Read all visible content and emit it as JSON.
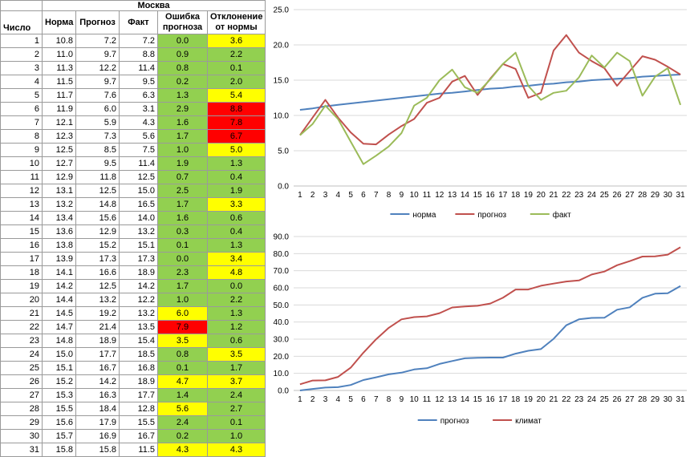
{
  "table": {
    "city": "Москва",
    "headers": [
      "Число",
      "Норма",
      "Прогноз",
      "Факт",
      "Ошибка прогноза",
      "Отклонение от нормы"
    ],
    "rows": [
      {
        "day": "1",
        "norm": "10.8",
        "fc": "7.2",
        "fact": "7.2",
        "err": "0.0",
        "dev": "3.6",
        "err_color": "green",
        "dev_color": "yellow"
      },
      {
        "day": "2",
        "norm": "11.0",
        "fc": "9.7",
        "fact": "8.8",
        "err": "0.9",
        "dev": "2.2",
        "err_color": "green",
        "dev_color": "green"
      },
      {
        "day": "3",
        "norm": "11.3",
        "fc": "12.2",
        "fact": "11.4",
        "err": "0.8",
        "dev": "0.1",
        "err_color": "green",
        "dev_color": "green"
      },
      {
        "day": "4",
        "norm": "11.5",
        "fc": "9.7",
        "fact": "9.5",
        "err": "0.2",
        "dev": "2.0",
        "err_color": "green",
        "dev_color": "green"
      },
      {
        "day": "5",
        "norm": "11.7",
        "fc": "7.6",
        "fact": "6.3",
        "err": "1.3",
        "dev": "5.4",
        "err_color": "green",
        "dev_color": "yellow"
      },
      {
        "day": "6",
        "norm": "11.9",
        "fc": "6.0",
        "fact": "3.1",
        "err": "2.9",
        "dev": "8.8",
        "err_color": "green",
        "dev_color": "red"
      },
      {
        "day": "7",
        "norm": "12.1",
        "fc": "5.9",
        "fact": "4.3",
        "err": "1.6",
        "dev": "7.8",
        "err_color": "green",
        "dev_color": "red"
      },
      {
        "day": "8",
        "norm": "12.3",
        "fc": "7.3",
        "fact": "5.6",
        "err": "1.7",
        "dev": "6.7",
        "err_color": "green",
        "dev_color": "red"
      },
      {
        "day": "9",
        "norm": "12.5",
        "fc": "8.5",
        "fact": "7.5",
        "err": "1.0",
        "dev": "5.0",
        "err_color": "green",
        "dev_color": "yellow"
      },
      {
        "day": "10",
        "norm": "12.7",
        "fc": "9.5",
        "fact": "11.4",
        "err": "1.9",
        "dev": "1.3",
        "err_color": "green",
        "dev_color": "green"
      },
      {
        "day": "11",
        "norm": "12.9",
        "fc": "11.8",
        "fact": "12.5",
        "err": "0.7",
        "dev": "0.4",
        "err_color": "green",
        "dev_color": "green"
      },
      {
        "day": "12",
        "norm": "13.1",
        "fc": "12.5",
        "fact": "15.0",
        "err": "2.5",
        "dev": "1.9",
        "err_color": "green",
        "dev_color": "green"
      },
      {
        "day": "13",
        "norm": "13.2",
        "fc": "14.8",
        "fact": "16.5",
        "err": "1.7",
        "dev": "3.3",
        "err_color": "green",
        "dev_color": "yellow"
      },
      {
        "day": "14",
        "norm": "13.4",
        "fc": "15.6",
        "fact": "14.0",
        "err": "1.6",
        "dev": "0.6",
        "err_color": "green",
        "dev_color": "green"
      },
      {
        "day": "15",
        "norm": "13.6",
        "fc": "12.9",
        "fact": "13.2",
        "err": "0.3",
        "dev": "0.4",
        "err_color": "green",
        "dev_color": "green"
      },
      {
        "day": "16",
        "norm": "13.8",
        "fc": "15.2",
        "fact": "15.1",
        "err": "0.1",
        "dev": "1.3",
        "err_color": "green",
        "dev_color": "green"
      },
      {
        "day": "17",
        "norm": "13.9",
        "fc": "17.3",
        "fact": "17.3",
        "err": "0.0",
        "dev": "3.4",
        "err_color": "green",
        "dev_color": "yellow"
      },
      {
        "day": "18",
        "norm": "14.1",
        "fc": "16.6",
        "fact": "18.9",
        "err": "2.3",
        "dev": "4.8",
        "err_color": "green",
        "dev_color": "yellow"
      },
      {
        "day": "19",
        "norm": "14.2",
        "fc": "12.5",
        "fact": "14.2",
        "err": "1.7",
        "dev": "0.0",
        "err_color": "green",
        "dev_color": "green"
      },
      {
        "day": "20",
        "norm": "14.4",
        "fc": "13.2",
        "fact": "12.2",
        "err": "1.0",
        "dev": "2.2",
        "err_color": "green",
        "dev_color": "green"
      },
      {
        "day": "21",
        "norm": "14.5",
        "fc": "19.2",
        "fact": "13.2",
        "err": "6.0",
        "dev": "1.3",
        "err_color": "yellow",
        "dev_color": "green"
      },
      {
        "day": "22",
        "norm": "14.7",
        "fc": "21.4",
        "fact": "13.5",
        "err": "7.9",
        "dev": "1.2",
        "err_color": "red",
        "dev_color": "green"
      },
      {
        "day": "23",
        "norm": "14.8",
        "fc": "18.9",
        "fact": "15.4",
        "err": "3.5",
        "dev": "0.6",
        "err_color": "yellow",
        "dev_color": "green"
      },
      {
        "day": "24",
        "norm": "15.0",
        "fc": "17.7",
        "fact": "18.5",
        "err": "0.8",
        "dev": "3.5",
        "err_color": "green",
        "dev_color": "yellow"
      },
      {
        "day": "25",
        "norm": "15.1",
        "fc": "16.7",
        "fact": "16.8",
        "err": "0.1",
        "dev": "1.7",
        "err_color": "green",
        "dev_color": "green"
      },
      {
        "day": "26",
        "norm": "15.2",
        "fc": "14.2",
        "fact": "18.9",
        "err": "4.7",
        "dev": "3.7",
        "err_color": "yellow",
        "dev_color": "yellow"
      },
      {
        "day": "27",
        "norm": "15.3",
        "fc": "16.3",
        "fact": "17.7",
        "err": "1.4",
        "dev": "2.4",
        "err_color": "green",
        "dev_color": "green"
      },
      {
        "day": "28",
        "norm": "15.5",
        "fc": "18.4",
        "fact": "12.8",
        "err": "5.6",
        "dev": "2.7",
        "err_color": "yellow",
        "dev_color": "green"
      },
      {
        "day": "29",
        "norm": "15.6",
        "fc": "17.9",
        "fact": "15.5",
        "err": "2.4",
        "dev": "0.1",
        "err_color": "green",
        "dev_color": "green"
      },
      {
        "day": "30",
        "norm": "15.7",
        "fc": "16.9",
        "fact": "16.7",
        "err": "0.2",
        "dev": "1.0",
        "err_color": "green",
        "dev_color": "green"
      },
      {
        "day": "31",
        "norm": "15.8",
        "fc": "15.8",
        "fact": "11.5",
        "err": "4.3",
        "dev": "4.3",
        "err_color": "yellow",
        "dev_color": "yellow"
      }
    ]
  },
  "colors": {
    "green": "#92d050",
    "yellow": "#ffff00",
    "red": "#ff0000",
    "norm_line": "#4f81bd",
    "forecast_line": "#c0504d",
    "fact_line": "#9bbb59",
    "grid": "#d9d9d9"
  },
  "chart_data": [
    {
      "type": "line",
      "categories": [
        "1",
        "2",
        "3",
        "4",
        "5",
        "6",
        "7",
        "8",
        "9",
        "10",
        "11",
        "12",
        "13",
        "14",
        "15",
        "16",
        "17",
        "18",
        "19",
        "20",
        "21",
        "22",
        "23",
        "24",
        "25",
        "26",
        "27",
        "28",
        "29",
        "30",
        "31"
      ],
      "ylim": [
        0,
        25
      ],
      "yticks": [
        "0.0",
        "5.0",
        "10.0",
        "15.0",
        "20.0",
        "25.0"
      ],
      "grid": true,
      "legend": "bottom",
      "series": [
        {
          "name": "норма",
          "color_key": "norm_line",
          "values": [
            10.8,
            11.0,
            11.3,
            11.5,
            11.7,
            11.9,
            12.1,
            12.3,
            12.5,
            12.7,
            12.9,
            13.1,
            13.2,
            13.4,
            13.6,
            13.8,
            13.9,
            14.1,
            14.2,
            14.4,
            14.5,
            14.7,
            14.8,
            15.0,
            15.1,
            15.2,
            15.3,
            15.5,
            15.6,
            15.7,
            15.8
          ]
        },
        {
          "name": "прогноз",
          "color_key": "forecast_line",
          "values": [
            7.2,
            9.7,
            12.2,
            9.7,
            7.6,
            6.0,
            5.9,
            7.3,
            8.5,
            9.5,
            11.8,
            12.5,
            14.8,
            15.6,
            12.9,
            15.2,
            17.3,
            16.6,
            12.5,
            13.2,
            19.2,
            21.4,
            18.9,
            17.7,
            16.7,
            14.2,
            16.3,
            18.4,
            17.9,
            16.9,
            15.8
          ]
        },
        {
          "name": "факт",
          "color_key": "fact_line",
          "values": [
            7.2,
            8.8,
            11.4,
            9.5,
            6.3,
            3.1,
            4.3,
            5.6,
            7.5,
            11.4,
            12.5,
            15.0,
            16.5,
            14.0,
            13.2,
            15.1,
            17.3,
            18.9,
            14.2,
            12.2,
            13.2,
            13.5,
            15.4,
            18.5,
            16.8,
            18.9,
            17.7,
            12.8,
            15.5,
            16.7,
            11.5
          ]
        }
      ]
    },
    {
      "type": "line",
      "categories": [
        "1",
        "2",
        "3",
        "4",
        "5",
        "6",
        "7",
        "8",
        "9",
        "10",
        "11",
        "12",
        "13",
        "14",
        "15",
        "16",
        "17",
        "18",
        "19",
        "20",
        "21",
        "22",
        "23",
        "24",
        "25",
        "26",
        "27",
        "28",
        "29",
        "30",
        "31"
      ],
      "ylim": [
        0,
        90
      ],
      "yticks": [
        "0.0",
        "10.0",
        "20.0",
        "30.0",
        "40.0",
        "50.0",
        "60.0",
        "70.0",
        "80.0",
        "90.0"
      ],
      "grid": true,
      "legend": "bottom",
      "series": [
        {
          "name": "прогноз",
          "color_key": "norm_line",
          "values": [
            0.0,
            0.9,
            1.7,
            1.9,
            3.2,
            6.1,
            7.7,
            9.4,
            10.4,
            12.3,
            13.0,
            15.5,
            17.2,
            18.8,
            19.1,
            19.2,
            19.2,
            21.5,
            23.2,
            24.2,
            30.2,
            38.1,
            41.6,
            42.4,
            42.5,
            47.2,
            48.6,
            54.2,
            56.6,
            56.8,
            61.1
          ]
        },
        {
          "name": "климат",
          "color_key": "forecast_line",
          "values": [
            3.6,
            5.8,
            5.9,
            7.9,
            13.3,
            22.1,
            29.9,
            36.6,
            41.6,
            42.9,
            43.3,
            45.2,
            48.5,
            49.1,
            49.5,
            50.8,
            54.2,
            59.0,
            59.0,
            61.2,
            62.5,
            63.7,
            64.3,
            67.8,
            69.5,
            73.2,
            75.6,
            78.3,
            78.4,
            79.4,
            83.7
          ]
        }
      ]
    }
  ]
}
